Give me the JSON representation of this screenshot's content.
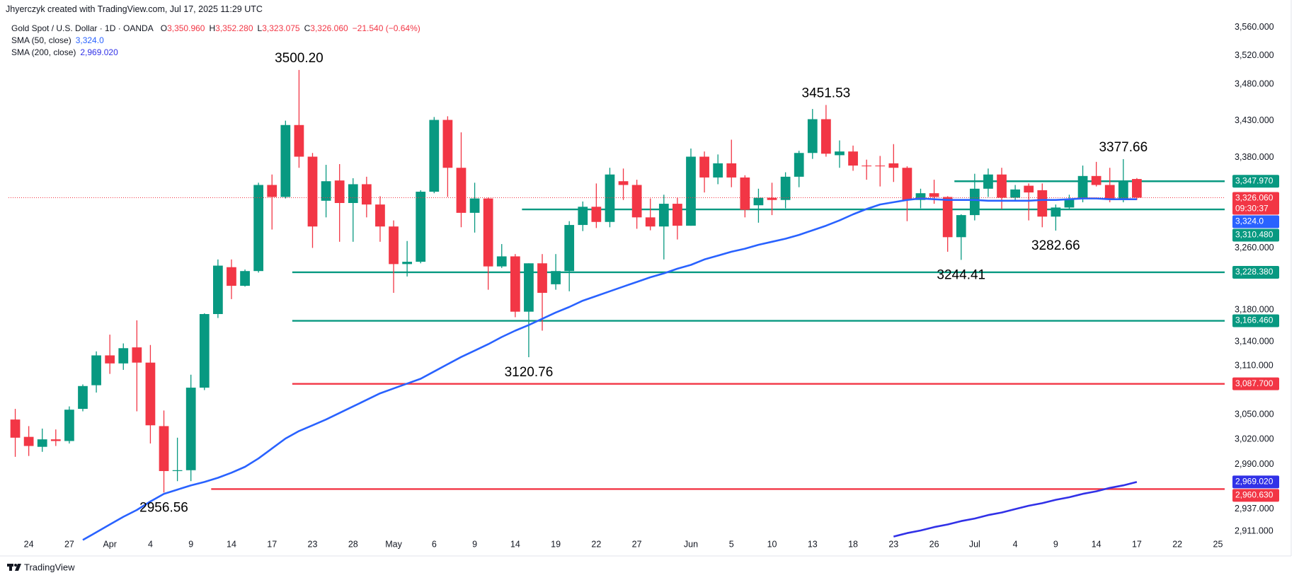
{
  "header": {
    "credit": "Jhyerczyk created with TradingView.com, Jul 17, 2025 11:29 UTC",
    "symbol": "Gold Spot / U.S. Dollar · 1D · OANDA",
    "ohlc": [
      {
        "key": "O",
        "text": "3,350.960"
      },
      {
        "key": "H",
        "text": "3,352.280"
      },
      {
        "key": "L",
        "text": "3,323.075"
      },
      {
        "key": "C",
        "text": "3,326.060"
      }
    ],
    "change": "−21.540 (−0.64%)"
  },
  "footer": {
    "brand": "TradingView"
  },
  "chart_data": {
    "type": "candlestick",
    "log_scale": true,
    "grid": false,
    "up_color": "#089981",
    "down_color": "#f23645",
    "categories": [
      null,
      "24",
      null,
      null,
      "27",
      null,
      null,
      "Apr",
      null,
      null,
      "4",
      null,
      null,
      "9",
      null,
      null,
      "14",
      null,
      null,
      "17",
      null,
      null,
      "23",
      null,
      null,
      "28",
      null,
      null,
      "May",
      null,
      null,
      "6",
      null,
      null,
      "9",
      null,
      null,
      "14",
      null,
      null,
      "19",
      null,
      null,
      "22",
      null,
      null,
      "27",
      null,
      null,
      null,
      "Jun",
      null,
      null,
      "5",
      null,
      null,
      "10",
      null,
      null,
      "13",
      null,
      null,
      "18",
      null,
      null,
      "23",
      null,
      null,
      "26",
      null,
      null,
      "Jul",
      null,
      null,
      "4",
      null,
      null,
      "9",
      null,
      null,
      "14",
      null,
      null,
      "17",
      null,
      null,
      "22",
      null,
      null,
      "25"
    ],
    "open": [
      3044,
      3023,
      3011,
      3020,
      3018,
      3057,
      3086,
      3123,
      3113,
      3133,
      3114,
      3036,
      2982,
      2983,
      3083,
      3175,
      3235,
      3211,
      3230,
      3343,
      3327,
      3424,
      3381,
      3322,
      3349,
      3319,
      3344,
      3317,
      3288,
      3239,
      3242,
      3334,
      3431,
      3366,
      3306,
      3325,
      3236,
      3249,
      3178,
      3240,
      3213,
      3230,
      3290,
      3314,
      3294,
      3348,
      3343,
      3300,
      3288,
      3318,
      3289,
      3381,
      3353,
      3372,
      3353,
      3316,
      3326,
      3323,
      3354,
      3386,
      3432,
      3383,
      3388,
      3369,
      3369,
      3372,
      3366,
      3323,
      3332,
      3327,
      3274,
      3303,
      3338,
      3357,
      3326,
      3342,
      3336,
      3301,
      3313,
      3324,
      3355,
      3343,
      3324,
      3350.96,
      null,
      null,
      null,
      null,
      null,
      null
    ],
    "high": [
      3057,
      3036,
      3033,
      3032,
      3060,
      3087,
      3128,
      3149,
      3138,
      3167,
      3136,
      3055,
      3022,
      3099,
      3176,
      3245,
      3245,
      3232,
      3346,
      3357,
      3430,
      3500.2,
      3386,
      3370,
      3371,
      3352,
      3354,
      3328,
      3296,
      3269,
      3336,
      3435,
      3436,
      3414,
      3346,
      3326,
      3265,
      3252,
      3240,
      3252,
      3252,
      3295,
      3321,
      3345,
      3366,
      3365,
      3350,
      3325,
      3330,
      3326,
      3392,
      3388,
      3384,
      3404,
      3356,
      3338,
      3346,
      3360,
      3389,
      3446,
      3451.53,
      3403,
      3396,
      3377,
      3382,
      3398,
      3368,
      3338,
      3350,
      3328,
      3304,
      3358,
      3365,
      3366,
      3343,
      3345,
      3345,
      3317,
      3330,
      3369,
      3374,
      3366,
      3377.66,
      3352.28,
      null,
      null,
      null,
      null,
      null,
      null
    ],
    "low": [
      2999,
      3000,
      3005,
      3012,
      3015,
      3054,
      3077,
      3100,
      3105,
      3054,
      3015,
      2956.56,
      2970,
      2970,
      3080,
      3170,
      3194,
      3210,
      3228,
      3284,
      3325,
      3366,
      3260,
      3300,
      3268,
      3268,
      3300,
      3268,
      3202,
      3223,
      3240,
      3332,
      3327,
      3287,
      3280,
      3206,
      3234,
      3171,
      3120.76,
      3154,
      3206,
      3204,
      3282,
      3286,
      3287,
      3323,
      3285,
      3283,
      3245,
      3271,
      3289,
      3333,
      3344,
      3340,
      3300,
      3293,
      3303,
      3312,
      3340,
      3378,
      3381,
      3366,
      3362,
      3350,
      3341,
      3347,
      3295,
      3312,
      3318,
      3255,
      3244.41,
      3296,
      3327,
      3311,
      3322,
      3296,
      3287,
      3282.66,
      3310,
      3320,
      3341,
      3320,
      3320,
      3323.075,
      null,
      null,
      null,
      null,
      null,
      null
    ],
    "close": [
      3022,
      3012,
      3020,
      3018,
      3056,
      3085,
      3123,
      3113,
      3132,
      3114,
      3037,
      2982,
      2983,
      3083,
      3175,
      3237,
      3211,
      3230,
      3343,
      3327,
      3424,
      3381,
      3288,
      3348,
      3319,
      3344,
      3317,
      3288,
      3239,
      3242,
      3334,
      3431,
      3366,
      3306,
      3325,
      3236,
      3249,
      3178,
      3240,
      3202,
      3230,
      3290,
      3314,
      3294,
      3357,
      3343,
      3300,
      3288,
      3318,
      3289,
      3381,
      3353,
      3372,
      3353,
      3310,
      3326,
      3323,
      3354,
      3386,
      3432,
      3385,
      3388,
      3369,
      3368,
      3368,
      3366,
      3323,
      3332,
      3327,
      3274,
      3303,
      3338,
      3357,
      3326,
      3337,
      3333,
      3301,
      3313,
      3324,
      3355,
      3343,
      3324,
      3347,
      3326.06,
      null,
      null,
      null,
      null,
      null,
      null
    ],
    "last_price": {
      "label": "3,326.060",
      "countdown": "09:30:37",
      "color": "#f23645"
    },
    "series": [
      {
        "name": "SMA (50, close)",
        "color": "#2962ff",
        "values": [
          null,
          null,
          null,
          null,
          null,
          2901,
          2910,
          2919,
          2928,
          2936,
          2946,
          2955,
          2960,
          2965,
          2969,
          2974,
          2980,
          2987,
          2997,
          3009,
          3021,
          3030,
          3037,
          3044,
          3052,
          3060,
          3068,
          3076,
          3082,
          3088,
          3094,
          3103,
          3112,
          3121,
          3129,
          3137,
          3146,
          3154,
          3161,
          3169,
          3177,
          3184,
          3192,
          3198,
          3204,
          3210,
          3216,
          3222,
          3227,
          3233,
          3238,
          3245,
          3250,
          3255,
          3259,
          3264,
          3268,
          3272,
          3277,
          3283,
          3289,
          3296,
          3304,
          3311,
          3317,
          3320,
          3323,
          3325,
          3324,
          3323,
          3323,
          3323,
          3322,
          3322,
          3322,
          3322,
          3323,
          3323,
          3324,
          3325,
          3325,
          3324,
          3324,
          3324.0,
          null,
          null,
          null,
          null,
          null,
          null
        ],
        "value_labels": [
          null,
          null,
          null,
          null,
          null,
          null,
          null,
          null,
          null,
          null,
          null,
          null,
          null,
          null,
          null,
          null,
          null,
          null,
          null,
          null,
          null,
          null,
          null,
          null,
          null,
          null,
          null,
          null,
          null,
          null,
          null,
          null,
          null,
          null,
          null,
          null,
          null,
          null,
          null,
          null,
          null,
          null,
          null,
          null,
          null,
          null,
          null,
          null,
          null,
          null,
          null,
          null,
          null,
          null,
          null,
          null,
          null,
          null,
          null,
          null,
          null,
          null,
          null,
          null,
          null,
          null,
          null,
          null,
          null,
          null,
          null,
          null,
          null,
          null,
          null,
          null,
          null,
          null,
          null,
          null,
          null,
          null,
          null,
          "3,324.0",
          null,
          null,
          null,
          null,
          null,
          null
        ]
      },
      {
        "name": "SMA (200, close)",
        "color": "#3131e7",
        "values": [
          null,
          null,
          null,
          null,
          null,
          null,
          null,
          null,
          null,
          null,
          null,
          null,
          null,
          null,
          null,
          null,
          null,
          null,
          null,
          null,
          null,
          null,
          null,
          null,
          null,
          null,
          null,
          null,
          null,
          null,
          null,
          null,
          null,
          null,
          null,
          null,
          null,
          null,
          null,
          null,
          null,
          null,
          null,
          null,
          null,
          null,
          null,
          null,
          null,
          null,
          null,
          null,
          null,
          null,
          null,
          null,
          null,
          null,
          null,
          null,
          null,
          null,
          null,
          null,
          null,
          2905,
          2909,
          2912,
          2916,
          2919,
          2923,
          2926,
          2930,
          2933,
          2937,
          2941,
          2944,
          2948,
          2951,
          2955,
          2958,
          2962,
          2965,
          2969.02,
          null,
          null,
          null,
          null,
          null,
          null
        ],
        "value_labels": [
          null,
          null,
          null,
          null,
          null,
          null,
          null,
          null,
          null,
          null,
          null,
          null,
          null,
          null,
          null,
          null,
          null,
          null,
          null,
          null,
          null,
          null,
          null,
          null,
          null,
          null,
          null,
          null,
          null,
          null,
          null,
          null,
          null,
          null,
          null,
          null,
          null,
          null,
          null,
          null,
          null,
          null,
          null,
          null,
          null,
          null,
          null,
          null,
          null,
          null,
          null,
          null,
          null,
          null,
          null,
          null,
          null,
          null,
          null,
          null,
          null,
          null,
          null,
          null,
          null,
          null,
          null,
          null,
          null,
          null,
          null,
          null,
          null,
          null,
          null,
          null,
          null,
          null,
          null,
          null,
          null,
          null,
          null,
          "2,969.020",
          null,
          null,
          null,
          null,
          null,
          null
        ]
      }
    ],
    "levels": [
      {
        "value": 3347.97,
        "label": "3,347.970",
        "color": "#089981"
      },
      {
        "value": 3310.48,
        "label": "3,310.480",
        "color": "#089981"
      },
      {
        "value": 3228.38,
        "label": "3,228.380",
        "color": "#089981"
      },
      {
        "value": 3166.46,
        "label": "3,166.460",
        "color": "#089981"
      },
      {
        "value": 3087.7,
        "label": "3,087.700",
        "color": "#f23645"
      },
      {
        "value": 2960.63,
        "label": "2,960.630",
        "color": "#f23645"
      }
    ],
    "annotations": [
      {
        "value": 3500.2,
        "label": "3500.20"
      },
      {
        "value": 3451.53,
        "label": "3451.53"
      },
      {
        "value": 3377.66,
        "label": "3377.66"
      },
      {
        "value": 3282.66,
        "label": "3282.66"
      },
      {
        "value": 3244.41,
        "label": "3244.41"
      },
      {
        "value": 3120.76,
        "label": "3120.76"
      },
      {
        "value": 2956.56,
        "label": "2956.56"
      }
    ],
    "ylim": [
      2903,
      3573
    ],
    "yticks": [
      {
        "value": 3560,
        "label": "3,560.000"
      },
      {
        "value": 3520,
        "label": "3,520.000"
      },
      {
        "value": 3480,
        "label": "3,480.000"
      },
      {
        "value": 3430,
        "label": "3,430.000"
      },
      {
        "value": 3380,
        "label": "3,380.000"
      },
      {
        "value": 3260,
        "label": "3,260.000"
      },
      {
        "value": 3180,
        "label": "3,180.000"
      },
      {
        "value": 3140,
        "label": "3,140.000"
      },
      {
        "value": 3110,
        "label": "3,110.000"
      },
      {
        "value": 3050,
        "label": "3,050.000"
      },
      {
        "value": 3020,
        "label": "3,020.000"
      },
      {
        "value": 2990,
        "label": "2,990.000"
      },
      {
        "value": 2937,
        "label": "2,937.000"
      },
      {
        "value": 2911,
        "label": "2,911.000"
      }
    ]
  }
}
